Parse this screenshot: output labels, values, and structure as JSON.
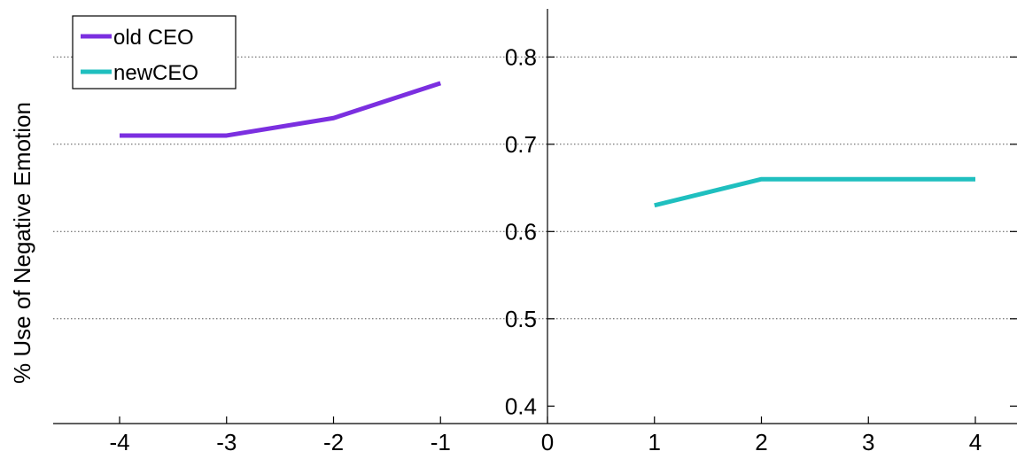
{
  "chart_data": {
    "type": "line",
    "ylabel": "% Use of Negative Emotion",
    "xlim": [
      -4.5,
      4.2
    ],
    "ylim": [
      0.38,
      0.86
    ],
    "x_ticks": [
      -4,
      -3,
      -2,
      -1,
      0,
      1,
      2,
      3,
      4
    ],
    "x_tick_labels": [
      "-4",
      "-3",
      "-2",
      "-1",
      "0",
      "1",
      "2",
      "3",
      "4"
    ],
    "y_ticks": [
      0.4,
      0.5,
      0.6,
      0.7,
      0.8
    ],
    "y_tick_labels": [
      "0.4",
      "0.5",
      "0.6",
      "0.7",
      "0.8"
    ],
    "grid": "horizontal dotted at y ticks",
    "legend_position": "top-left",
    "series": [
      {
        "name": "old CEO",
        "color": "#7b2fe0",
        "x": [
          -4,
          -3,
          -2,
          -1
        ],
        "y": [
          0.71,
          0.71,
          0.73,
          0.77
        ]
      },
      {
        "name": "newCEO",
        "color": "#1fbfbf",
        "x": [
          1,
          2,
          3,
          4
        ],
        "y": [
          0.63,
          0.66,
          0.66,
          0.66
        ]
      }
    ]
  }
}
